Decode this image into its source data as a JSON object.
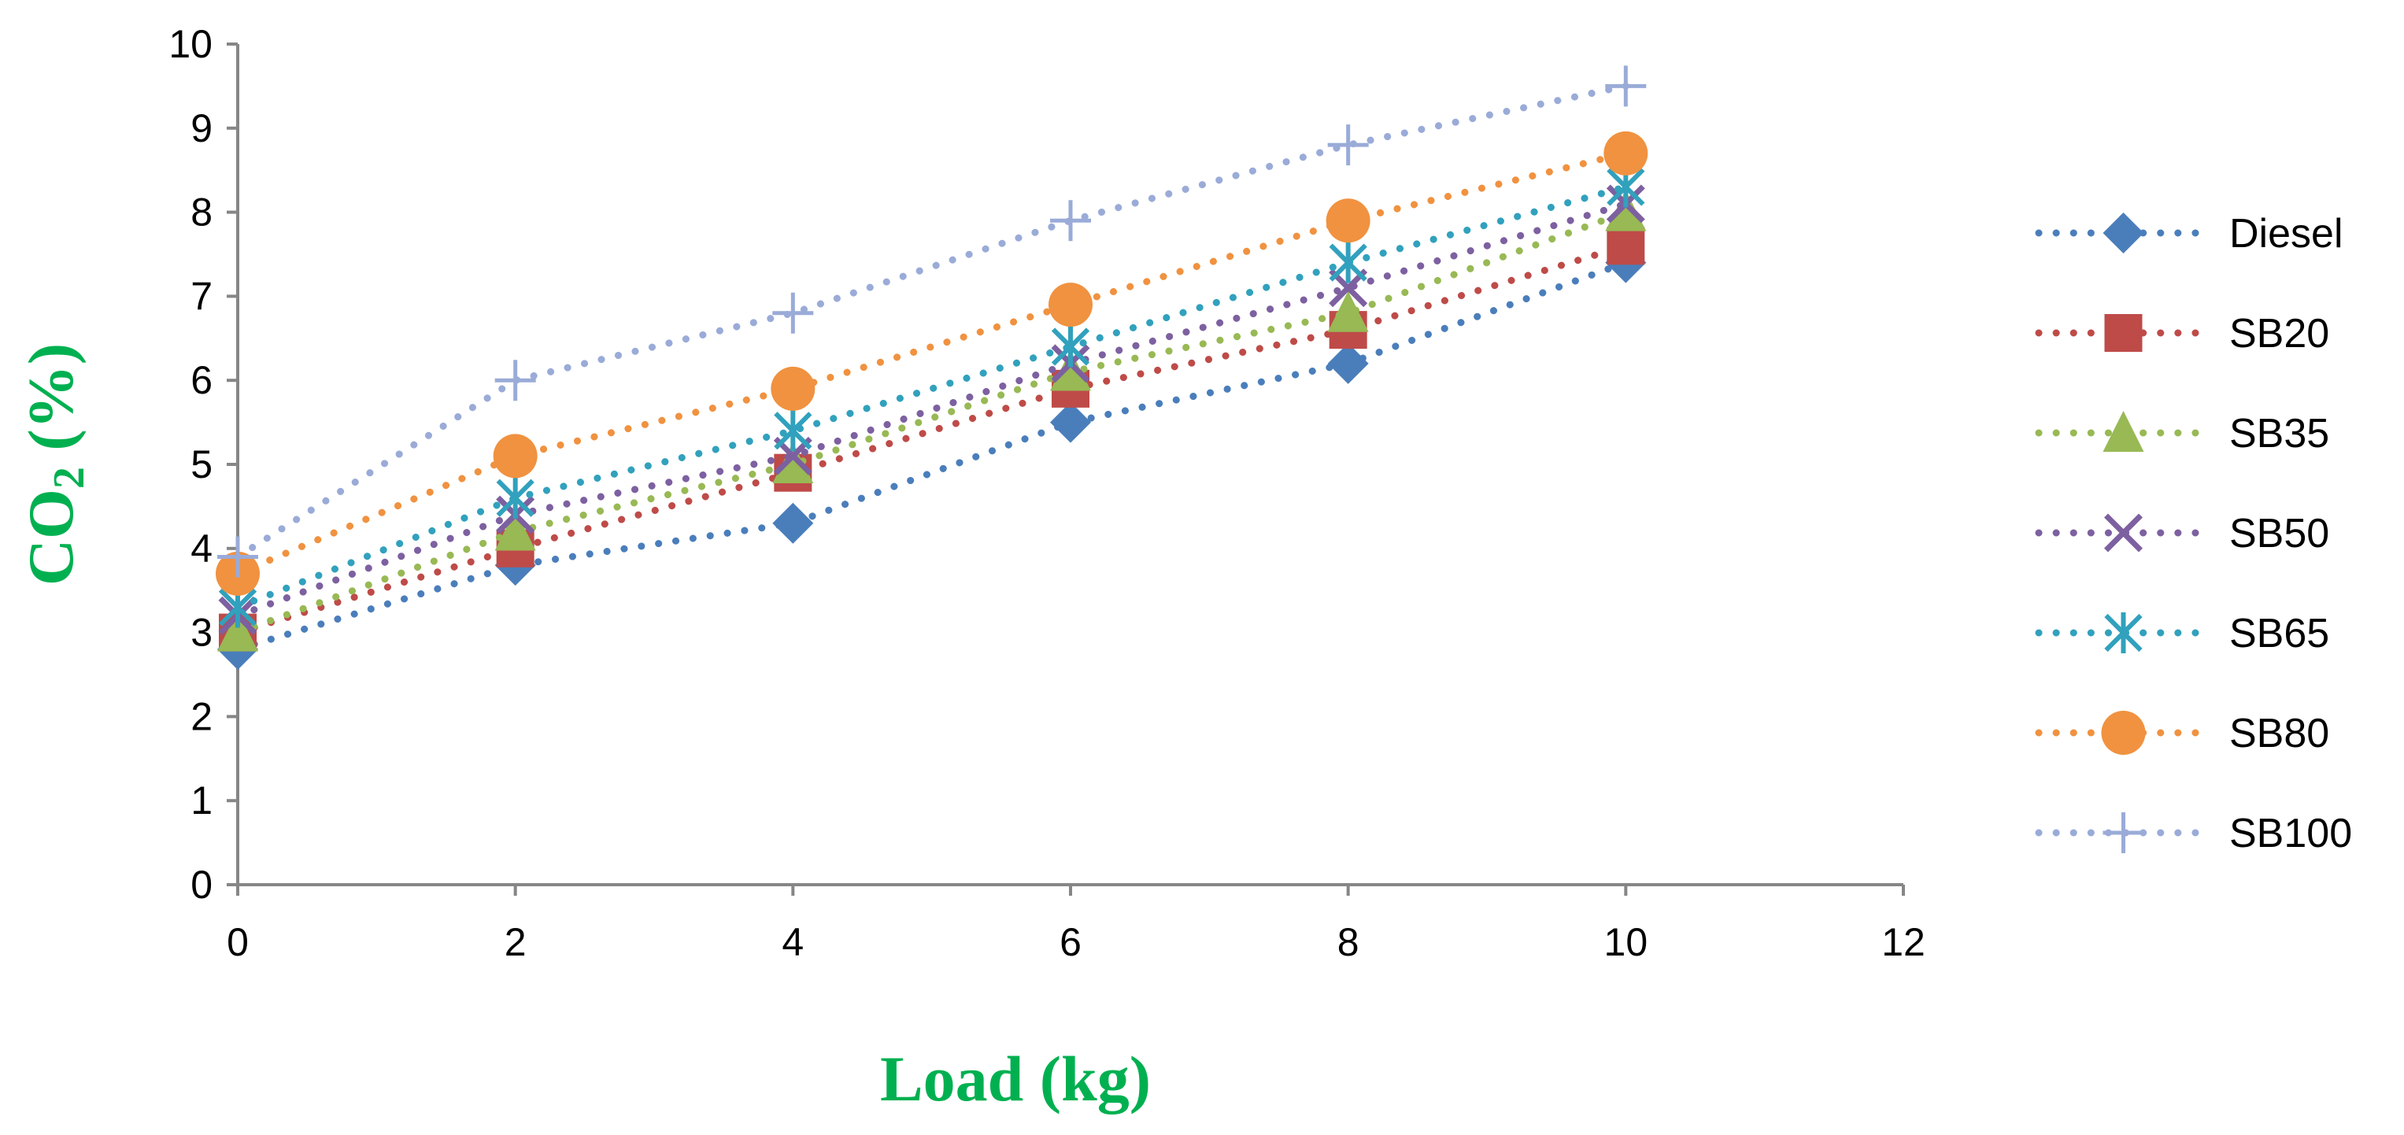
{
  "chart_data": {
    "type": "line",
    "xlabel": "Load (kg)",
    "ylabel": {
      "base": "CO",
      "subscript": "2",
      "suffix": " (%)"
    },
    "xlim": [
      0,
      12
    ],
    "ylim": [
      0,
      10
    ],
    "x_ticks": [
      0,
      2,
      4,
      6,
      8,
      10,
      12
    ],
    "y_ticks": [
      0,
      1,
      2,
      3,
      4,
      5,
      6,
      7,
      8,
      9,
      10
    ],
    "grid": false,
    "legend_position": "right",
    "line_style": "dotted",
    "x": [
      0,
      2,
      4,
      6,
      8,
      10
    ],
    "series": [
      {
        "name": "Diesel",
        "marker": "diamond",
        "color": "#4a7ebb",
        "values": [
          2.8,
          3.8,
          4.3,
          5.5,
          6.2,
          7.4
        ]
      },
      {
        "name": "SB20",
        "marker": "square",
        "color": "#be4b48",
        "values": [
          3.0,
          4.0,
          4.9,
          5.9,
          6.6,
          7.6
        ]
      },
      {
        "name": "SB35",
        "marker": "triangle",
        "color": "#98b954",
        "values": [
          3.0,
          4.2,
          5.0,
          6.1,
          6.8,
          8.0
        ]
      },
      {
        "name": "SB50",
        "marker": "x",
        "color": "#7d60a0",
        "values": [
          3.2,
          4.4,
          5.1,
          6.2,
          7.1,
          8.1
        ]
      },
      {
        "name": "SB65",
        "marker": "asterisk",
        "color": "#31a1bd",
        "values": [
          3.3,
          4.6,
          5.4,
          6.4,
          7.4,
          8.3
        ]
      },
      {
        "name": "SB80",
        "marker": "circle",
        "color": "#f09240",
        "values": [
          3.7,
          5.1,
          5.9,
          6.9,
          7.9,
          8.7
        ]
      },
      {
        "name": "SB100",
        "marker": "plus",
        "color": "#9aabd8",
        "values": [
          3.9,
          6.0,
          6.8,
          7.9,
          8.8,
          9.5
        ]
      }
    ]
  }
}
